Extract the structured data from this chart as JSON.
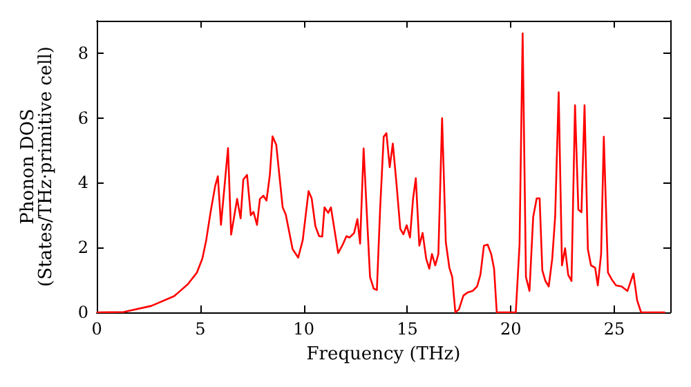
{
  "chart_data": {
    "type": "line",
    "xlabel": "Frequency (THz)",
    "ylabel": "Phonon DOS\n(States/THz·primitive cell)",
    "xlim": [
      0,
      27.7
    ],
    "xticks": [
      0,
      5,
      10,
      15,
      20,
      25
    ],
    "ylim": [
      0,
      9
    ],
    "yticks": [
      0,
      2,
      4,
      6,
      8
    ],
    "marker": "none",
    "line_style": "solid",
    "series": [
      {
        "color": "#ff0000",
        "x": [
          0,
          1.3,
          2.64,
          3.74,
          4.4,
          4.84,
          5.1,
          5.28,
          5.5,
          5.72,
          5.85,
          6.0,
          6.34,
          6.49,
          6.78,
          6.95,
          7.08,
          7.26,
          7.44,
          7.57,
          7.74,
          7.88,
          8.05,
          8.2,
          8.36,
          8.49,
          8.67,
          8.98,
          9.13,
          9.46,
          9.73,
          9.95,
          10.23,
          10.38,
          10.56,
          10.74,
          10.89,
          11.0,
          11.18,
          11.31,
          11.49,
          11.66,
          11.88,
          12.06,
          12.21,
          12.43,
          12.59,
          12.72,
          12.89,
          13.03,
          13.2,
          13.38,
          13.53,
          13.69,
          13.86,
          13.99,
          14.15,
          14.3,
          14.48,
          14.66,
          14.81,
          14.97,
          15.13,
          15.28,
          15.41,
          15.58,
          15.74,
          15.91,
          16.06,
          16.19,
          16.35,
          16.5,
          16.68,
          16.86,
          17.03,
          17.17,
          17.32,
          17.49,
          17.71,
          17.93,
          18.15,
          18.37,
          18.53,
          18.7,
          18.88,
          19.05,
          19.19,
          19.32,
          20.24,
          20.42,
          20.57,
          20.73,
          20.9,
          21.08,
          21.25,
          21.39,
          21.52,
          21.67,
          21.83,
          22.0,
          22.14,
          22.31,
          22.47,
          22.62,
          22.77,
          22.93,
          23.1,
          23.26,
          23.41,
          23.56,
          23.72,
          23.87,
          24.07,
          24.2,
          24.36,
          24.49,
          24.69,
          24.87,
          25.08,
          25.35,
          25.63,
          25.92,
          26.1,
          26.29,
          27.45
        ],
        "values": [
          0,
          0.01,
          0.2,
          0.5,
          0.87,
          1.23,
          1.66,
          2.2,
          3.1,
          3.9,
          4.2,
          2.7,
          5.07,
          2.4,
          3.5,
          2.9,
          4.1,
          4.24,
          3.0,
          3.1,
          2.7,
          3.5,
          3.6,
          3.45,
          4.24,
          5.43,
          5.17,
          3.24,
          3.02,
          1.95,
          1.69,
          2.23,
          3.74,
          3.52,
          2.66,
          2.35,
          2.34,
          3.24,
          3.07,
          3.24,
          2.52,
          1.83,
          2.09,
          2.35,
          2.31,
          2.45,
          2.88,
          2.12,
          5.06,
          3.24,
          1.09,
          0.73,
          0.69,
          3.24,
          5.42,
          5.53,
          4.48,
          5.21,
          3.95,
          2.58,
          2.41,
          2.69,
          2.31,
          3.52,
          4.14,
          2.06,
          2.45,
          1.66,
          1.35,
          1.8,
          1.45,
          1.8,
          5.99,
          2.16,
          1.38,
          1.09,
          0,
          0.09,
          0.52,
          0.62,
          0.66,
          0.8,
          1.16,
          2.06,
          2.09,
          1.8,
          1.35,
          0,
          0,
          2.09,
          8.61,
          1.09,
          0.66,
          2.95,
          3.52,
          3.52,
          1.3,
          0.97,
          0.8,
          1.66,
          2.95,
          6.79,
          1.45,
          1.98,
          1.16,
          0.97,
          6.39,
          3.17,
          3.09,
          6.39,
          1.95,
          1.45,
          1.38,
          0.83,
          1.8,
          5.42,
          1.23,
          1.02,
          0.83,
          0.8,
          0.66,
          1.2,
          0.37,
          0,
          0
        ]
      }
    ]
  }
}
